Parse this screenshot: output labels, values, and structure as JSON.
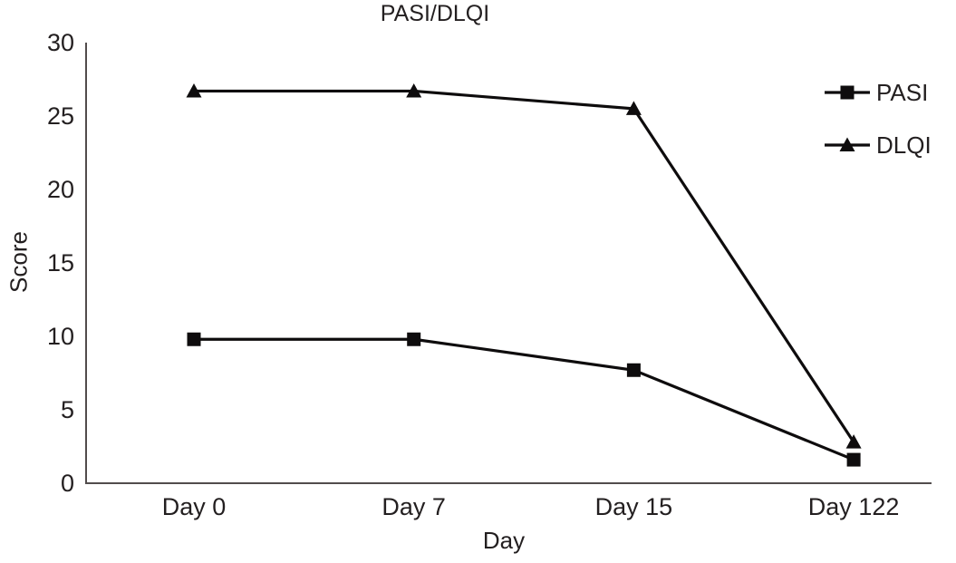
{
  "figure": {
    "background": "#ffffff",
    "text_color": "#231f20"
  },
  "chart_data": {
    "type": "line",
    "title": "PASI/DLQI",
    "xlabel": "Day",
    "ylabel": "Score",
    "categories": [
      "Day 0",
      "Day 7",
      "Day 15",
      "Day 122"
    ],
    "series": [
      {
        "name": "PASI",
        "marker": "square",
        "color": "#0e0c0d",
        "values": [
          9.8,
          9.8,
          7.7,
          1.6
        ]
      },
      {
        "name": "DLQI",
        "marker": "triangle",
        "color": "#0e0c0d",
        "values": [
          26.7,
          26.7,
          25.5,
          2.8
        ]
      }
    ],
    "ylim": [
      0,
      30
    ],
    "yticks": [
      0,
      5,
      10,
      15,
      20,
      25,
      30
    ],
    "grid": false,
    "legend_position": "top-right",
    "axis_color": "#524c4c",
    "line_width": 3.2
  }
}
